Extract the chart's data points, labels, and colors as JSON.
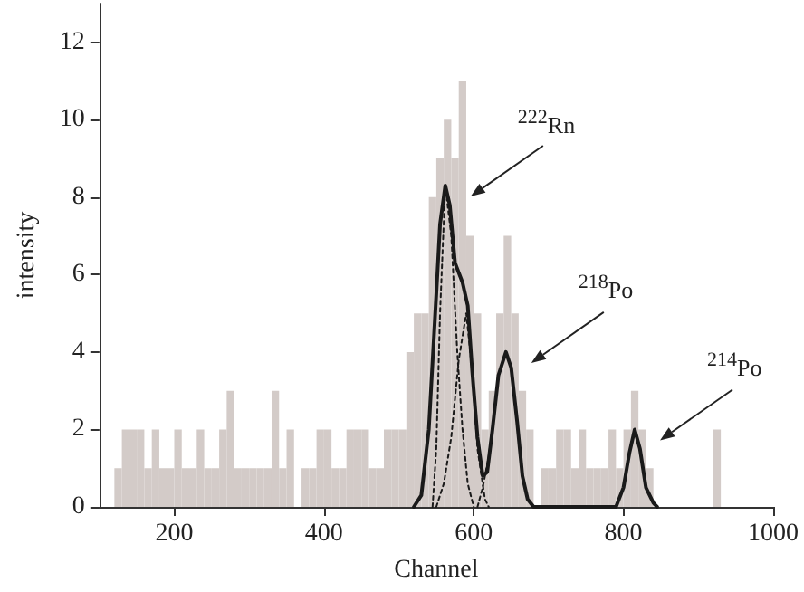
{
  "chart_data": {
    "type": "histogram",
    "xlabel": "Channel",
    "ylabel": "intensity",
    "xlim": [
      100,
      1000
    ],
    "xticks": [
      200,
      400,
      600,
      800,
      1000
    ],
    "ylim": [
      0,
      13
    ],
    "yticks": [
      0,
      2,
      4,
      6,
      8,
      10,
      12
    ],
    "grid": false,
    "color": "#d3cbc8",
    "bins": [
      120,
      130,
      140,
      150,
      160,
      170,
      180,
      190,
      200,
      210,
      220,
      230,
      240,
      250,
      260,
      270,
      280,
      290,
      300,
      310,
      320,
      330,
      340,
      350,
      360,
      370,
      380,
      390,
      400,
      410,
      420,
      430,
      440,
      450,
      460,
      470,
      480,
      490,
      500,
      510,
      520,
      530,
      540,
      550,
      560,
      570,
      580,
      590,
      600,
      610,
      620,
      630,
      640,
      650,
      660,
      670,
      680,
      690,
      700,
      710,
      720,
      730,
      740,
      750,
      760,
      770,
      780,
      790,
      800,
      810,
      820,
      830,
      840,
      850,
      860,
      870,
      880,
      890,
      900,
      910,
      920,
      930
    ],
    "values": [
      1,
      2,
      2,
      2,
      1,
      2,
      1,
      1,
      2,
      1,
      1,
      2,
      1,
      1,
      2,
      3,
      1,
      1,
      1,
      1,
      1,
      3,
      1,
      2,
      0,
      1,
      1,
      2,
      2,
      1,
      1,
      2,
      2,
      2,
      1,
      1,
      2,
      2,
      2,
      4,
      5,
      5,
      8,
      9,
      10,
      9,
      11,
      7,
      5,
      2,
      3,
      5,
      7,
      5,
      3,
      2,
      0,
      1,
      1,
      2,
      2,
      1,
      2,
      1,
      1,
      1,
      2,
      1,
      2,
      3,
      2,
      1,
      0,
      0,
      0,
      0,
      0,
      0,
      0,
      0,
      2
    ],
    "series": [
      {
        "type": "line",
        "color": "#1a1a1a",
        "line_style": "solid",
        "x": [
          520,
          530,
          540,
          550,
          555,
          562,
          568,
          575,
          585,
          592,
          598,
          605,
          612,
          618,
          625,
          633,
          643,
          650,
          658,
          665,
          672,
          680,
          790,
          800,
          808,
          815,
          822,
          830,
          840,
          845
        ],
        "values": [
          0,
          0.3,
          2,
          5.5,
          7.3,
          8.3,
          7.8,
          6.3,
          5.8,
          5.2,
          3.5,
          1.8,
          0.8,
          0.9,
          2,
          3.4,
          4,
          3.6,
          2.2,
          0.8,
          0.2,
          0,
          0,
          0.5,
          1.4,
          2,
          1.5,
          0.5,
          0.1,
          0
        ]
      },
      {
        "type": "line",
        "color": "#1a1a1a",
        "line_style": "dotted",
        "x": [
          545,
          550,
          555,
          562,
          570,
          578,
          585,
          592,
          600
        ],
        "values": [
          0,
          1.5,
          5,
          8.3,
          7,
          4,
          2,
          0.6,
          0
        ]
      },
      {
        "type": "line",
        "color": "#1a1a1a",
        "line_style": "dotted",
        "x": [
          550,
          560,
          570,
          580,
          590,
          598,
          605,
          615,
          620
        ],
        "values": [
          0,
          0.6,
          1.8,
          3.8,
          5,
          3.5,
          1.5,
          0.2,
          0
        ]
      },
      {
        "type": "line",
        "color": "#1a1a1a",
        "line_style": "dotted",
        "x": [
          605,
          612,
          620,
          630
        ],
        "values": [
          0,
          0.5,
          1.3,
          2.8
        ]
      }
    ],
    "annotations": [
      "$^{222}$Rn",
      "$^{218}$Po",
      "$^{214}$Po"
    ]
  }
}
